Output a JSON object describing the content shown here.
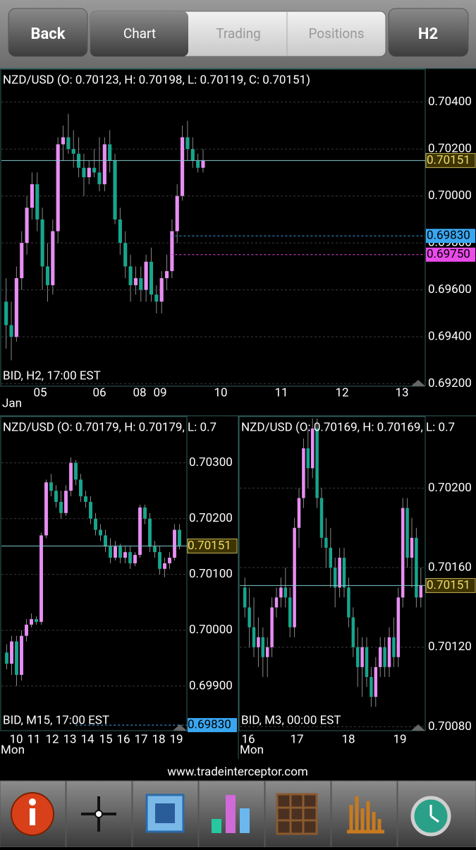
{
  "header": {
    "back": "Back",
    "tabs": [
      "Chart",
      "Trading",
      "Positions"
    ],
    "timeframe": "H2"
  },
  "chart_data": [
    {
      "type": "candlestick",
      "title": "NZD/USD (O: 0.70123, H: 0.70198, L: 0.70119, C: 0.70151)",
      "info": "BID, H2, 17:00 EST",
      "x_labels": [
        "05",
        "06",
        "08",
        "09",
        "10",
        "11",
        "12",
        "13"
      ],
      "x_unit": "Jan",
      "ylim": [
        0.6919,
        0.7054
      ],
      "yticks": [
        {
          "value": 0.704,
          "label": "0.70400"
        },
        {
          "value": 0.702,
          "label": "0.70200"
        },
        {
          "value": 0.7,
          "label": "0.70000"
        },
        {
          "value": 0.698,
          "label": "0.69800"
        },
        {
          "value": 0.696,
          "label": "0.69600"
        },
        {
          "value": 0.694,
          "label": "0.69400"
        },
        {
          "value": 0.692,
          "label": "0.69200"
        }
      ],
      "grid": true,
      "up_color": "#e78ef2",
      "down_color": "#17a58c",
      "price_lines": [
        {
          "value": 0.70151,
          "color": "#7fc7cc"
        },
        {
          "value": 0.6983,
          "label": "0.69830",
          "color": "#3aa6f0"
        },
        {
          "value": 0.6975,
          "label": "0.69750",
          "color": "#e94be9"
        }
      ],
      "ohlc": [
        [
          0.6955,
          0.6965,
          0.6935,
          0.6945
        ],
        [
          0.6945,
          0.6955,
          0.693,
          0.694
        ],
        [
          0.694,
          0.697,
          0.6938,
          0.6965
        ],
        [
          0.6965,
          0.6985,
          0.696,
          0.698
        ],
        [
          0.698,
          0.7,
          0.6975,
          0.6995
        ],
        [
          0.6995,
          0.701,
          0.699,
          0.7005
        ],
        [
          0.7005,
          0.701,
          0.6985,
          0.699
        ],
        [
          0.699,
          0.6995,
          0.696,
          0.697
        ],
        [
          0.697,
          0.698,
          0.6955,
          0.6962
        ],
        [
          0.6962,
          0.699,
          0.6958,
          0.6985
        ],
        [
          0.6985,
          0.7025,
          0.698,
          0.7022
        ],
        [
          0.7022,
          0.703,
          0.7015,
          0.7025
        ],
        [
          0.7025,
          0.7035,
          0.7018,
          0.702
        ],
        [
          0.702,
          0.7028,
          0.7012,
          0.7018
        ],
        [
          0.7018,
          0.7025,
          0.7008,
          0.7012
        ],
        [
          0.7012,
          0.7018,
          0.7,
          0.7008
        ],
        [
          0.7008,
          0.7015,
          0.7005,
          0.7012
        ],
        [
          0.7012,
          0.702,
          0.7008,
          0.701
        ],
        [
          0.701,
          0.7025,
          0.7002,
          0.7005
        ],
        [
          0.7005,
          0.7025,
          0.7002,
          0.7022
        ],
        [
          0.7022,
          0.7028,
          0.701,
          0.7015
        ],
        [
          0.7015,
          0.7018,
          0.6988,
          0.699
        ],
        [
          0.699,
          0.6995,
          0.6975,
          0.698
        ],
        [
          0.698,
          0.6985,
          0.6965,
          0.697
        ],
        [
          0.697,
          0.6975,
          0.6955,
          0.6962
        ],
        [
          0.6962,
          0.697,
          0.6958,
          0.6965
        ],
        [
          0.6965,
          0.697,
          0.6955,
          0.696
        ],
        [
          0.696,
          0.6975,
          0.6955,
          0.6972
        ],
        [
          0.6972,
          0.6978,
          0.6955,
          0.6958
        ],
        [
          0.6958,
          0.6962,
          0.695,
          0.6955
        ],
        [
          0.6955,
          0.6968,
          0.695,
          0.6965
        ],
        [
          0.6965,
          0.6975,
          0.696,
          0.6968
        ],
        [
          0.6968,
          0.699,
          0.6965,
          0.6985
        ],
        [
          0.6985,
          0.7005,
          0.698,
          0.7
        ],
        [
          0.7,
          0.703,
          0.6998,
          0.7025
        ],
        [
          0.7025,
          0.7032,
          0.7015,
          0.702
        ],
        [
          0.702,
          0.7025,
          0.7012,
          0.7015
        ],
        [
          0.7015,
          0.7018,
          0.701,
          0.7012
        ],
        [
          0.7012,
          0.702,
          0.701,
          0.7015
        ]
      ]
    },
    {
      "type": "candlestick",
      "title": "NZD/USD (O: 0.70179, H: 0.70179, L: 0.7",
      "info": "BID, M15, 17:00 EST",
      "x_labels": [
        "10",
        "11",
        "12",
        "13",
        "14",
        "15",
        "16",
        "17",
        "18",
        "19"
      ],
      "x_unit": "Mon",
      "ylim": [
        0.6982,
        0.70383
      ],
      "yticks": [
        {
          "value": 0.703,
          "label": "0.70300"
        },
        {
          "value": 0.702,
          "label": "0.70200"
        },
        {
          "value": 0.701,
          "label": "0.70100"
        },
        {
          "value": 0.7,
          "label": "0.70000"
        },
        {
          "value": 0.699,
          "label": "0.69900"
        }
      ],
      "grid": true,
      "up_color": "#e78ef2",
      "down_color": "#17a58c",
      "price_lines": [
        {
          "value": 0.70151,
          "color": "#7fc7cc"
        },
        {
          "value": 0.6983,
          "label": "0.69830",
          "color": "#3aa6f0"
        }
      ],
      "ohlc": [
        [
          0.6996,
          0.69975,
          0.6993,
          0.6994
        ],
        [
          0.6994,
          0.6999,
          0.6992,
          0.6998
        ],
        [
          0.6998,
          0.6999,
          0.699,
          0.6992
        ],
        [
          0.6992,
          0.7,
          0.6991,
          0.6999
        ],
        [
          0.6999,
          0.7002,
          0.6998,
          0.7001
        ],
        [
          0.7001,
          0.7003,
          0.70005,
          0.7002
        ],
        [
          0.7002,
          0.70025,
          0.7001,
          0.70015
        ],
        [
          0.70015,
          0.70175,
          0.7001,
          0.7017
        ],
        [
          0.7017,
          0.7027,
          0.70165,
          0.70265
        ],
        [
          0.70265,
          0.7028,
          0.7024,
          0.7025
        ],
        [
          0.7025,
          0.7026,
          0.7022,
          0.7023
        ],
        [
          0.7023,
          0.7025,
          0.702,
          0.7021
        ],
        [
          0.7021,
          0.7026,
          0.70205,
          0.7025
        ],
        [
          0.7025,
          0.7031,
          0.7024,
          0.703
        ],
        [
          0.703,
          0.70305,
          0.7026,
          0.7027
        ],
        [
          0.7027,
          0.7028,
          0.7023,
          0.7024
        ],
        [
          0.7024,
          0.7025,
          0.7022,
          0.7023
        ],
        [
          0.7023,
          0.7024,
          0.7019,
          0.702
        ],
        [
          0.702,
          0.7021,
          0.7017,
          0.7018
        ],
        [
          0.7018,
          0.7019,
          0.7016,
          0.7017
        ],
        [
          0.7017,
          0.7018,
          0.7014,
          0.7015
        ],
        [
          0.7015,
          0.70165,
          0.7012,
          0.7013
        ],
        [
          0.7013,
          0.7016,
          0.70125,
          0.7015
        ],
        [
          0.7015,
          0.70155,
          0.7012,
          0.7013
        ],
        [
          0.7013,
          0.7015,
          0.7012,
          0.7014
        ],
        [
          0.7014,
          0.7015,
          0.7011,
          0.7012
        ],
        [
          0.7012,
          0.7014,
          0.70115,
          0.70135
        ],
        [
          0.70135,
          0.70225,
          0.7013,
          0.7022
        ],
        [
          0.7022,
          0.70225,
          0.7019,
          0.702
        ],
        [
          0.702,
          0.7021,
          0.7014,
          0.7015
        ],
        [
          0.7015,
          0.7016,
          0.7013,
          0.7014
        ],
        [
          0.7014,
          0.7015,
          0.701,
          0.7011
        ],
        [
          0.7011,
          0.7013,
          0.70095,
          0.7012
        ],
        [
          0.7012,
          0.7014,
          0.7011,
          0.7013
        ],
        [
          0.7013,
          0.7019,
          0.70125,
          0.7018
        ],
        [
          0.7018,
          0.7019,
          0.70145,
          0.70151
        ]
      ]
    },
    {
      "type": "candlestick",
      "title": "NZD/USD (O: 0.70169, H: 0.70169, L: 0.7",
      "info": "BID, M3, 00:00 EST",
      "x_labels": [
        "16",
        "17",
        "18",
        "19"
      ],
      "x_unit": "Mon",
      "ylim": [
        0.70078,
        0.70236
      ],
      "yticks": [
        {
          "value": 0.702,
          "label": "0.70200"
        },
        {
          "value": 0.7016,
          "label": "0.70160"
        },
        {
          "value": 0.7012,
          "label": "0.70120"
        },
        {
          "value": 0.7008,
          "label": "0.70080"
        }
      ],
      "grid": true,
      "up_color": "#e78ef2",
      "down_color": "#17a58c",
      "price_lines": [
        {
          "value": 0.70151,
          "color": "#7fc7cc"
        }
      ],
      "ohlc": [
        [
          0.7015,
          0.70155,
          0.70135,
          0.7014
        ],
        [
          0.7014,
          0.7015,
          0.7012,
          0.7013
        ],
        [
          0.7013,
          0.70145,
          0.70115,
          0.7012
        ],
        [
          0.7012,
          0.70135,
          0.7011,
          0.70125
        ],
        [
          0.70125,
          0.7013,
          0.70105,
          0.70115
        ],
        [
          0.70115,
          0.70125,
          0.70105,
          0.7012
        ],
        [
          0.7012,
          0.70145,
          0.70115,
          0.7014
        ],
        [
          0.7014,
          0.7015,
          0.70135,
          0.70145
        ],
        [
          0.70145,
          0.70155,
          0.7014,
          0.7015
        ],
        [
          0.7015,
          0.7016,
          0.7014,
          0.70145
        ],
        [
          0.70145,
          0.7015,
          0.70125,
          0.7013
        ],
        [
          0.7013,
          0.70185,
          0.70125,
          0.7018
        ],
        [
          0.7018,
          0.702,
          0.7017,
          0.70195
        ],
        [
          0.70195,
          0.70225,
          0.7019,
          0.7022
        ],
        [
          0.7022,
          0.7023,
          0.702,
          0.7021
        ],
        [
          0.7021,
          0.70235,
          0.70205,
          0.7023
        ],
        [
          0.7023,
          0.70235,
          0.7019,
          0.70195
        ],
        [
          0.70195,
          0.702,
          0.7017,
          0.70175
        ],
        [
          0.70175,
          0.70185,
          0.7016,
          0.7017
        ],
        [
          0.7017,
          0.7018,
          0.7015,
          0.7016
        ],
        [
          0.7016,
          0.70165,
          0.7014,
          0.7015
        ],
        [
          0.7015,
          0.7017,
          0.70145,
          0.70165
        ],
        [
          0.70165,
          0.7017,
          0.70145,
          0.7015
        ],
        [
          0.7015,
          0.70155,
          0.7013,
          0.70135
        ],
        [
          0.70135,
          0.7014,
          0.70115,
          0.7012
        ],
        [
          0.7012,
          0.7013,
          0.701,
          0.7011
        ],
        [
          0.7011,
          0.70125,
          0.70095,
          0.7012
        ],
        [
          0.7012,
          0.70125,
          0.701,
          0.70105
        ],
        [
          0.70105,
          0.7011,
          0.7009,
          0.70095
        ],
        [
          0.70095,
          0.70115,
          0.7009,
          0.7011
        ],
        [
          0.7011,
          0.70125,
          0.70105,
          0.7012
        ],
        [
          0.7012,
          0.70125,
          0.70105,
          0.7011
        ],
        [
          0.7011,
          0.7013,
          0.70105,
          0.70125
        ],
        [
          0.70125,
          0.70135,
          0.7011,
          0.70115
        ],
        [
          0.70115,
          0.7015,
          0.7011,
          0.70145
        ],
        [
          0.70145,
          0.70195,
          0.7014,
          0.7019
        ],
        [
          0.7019,
          0.70195,
          0.7016,
          0.70165
        ],
        [
          0.70165,
          0.70185,
          0.7015,
          0.70175
        ],
        [
          0.70175,
          0.7018,
          0.7014,
          0.70145
        ],
        [
          0.70145,
          0.7016,
          0.7014,
          0.70151
        ]
      ]
    }
  ],
  "footer": {
    "url": "www.tradeinterceptor.com"
  }
}
